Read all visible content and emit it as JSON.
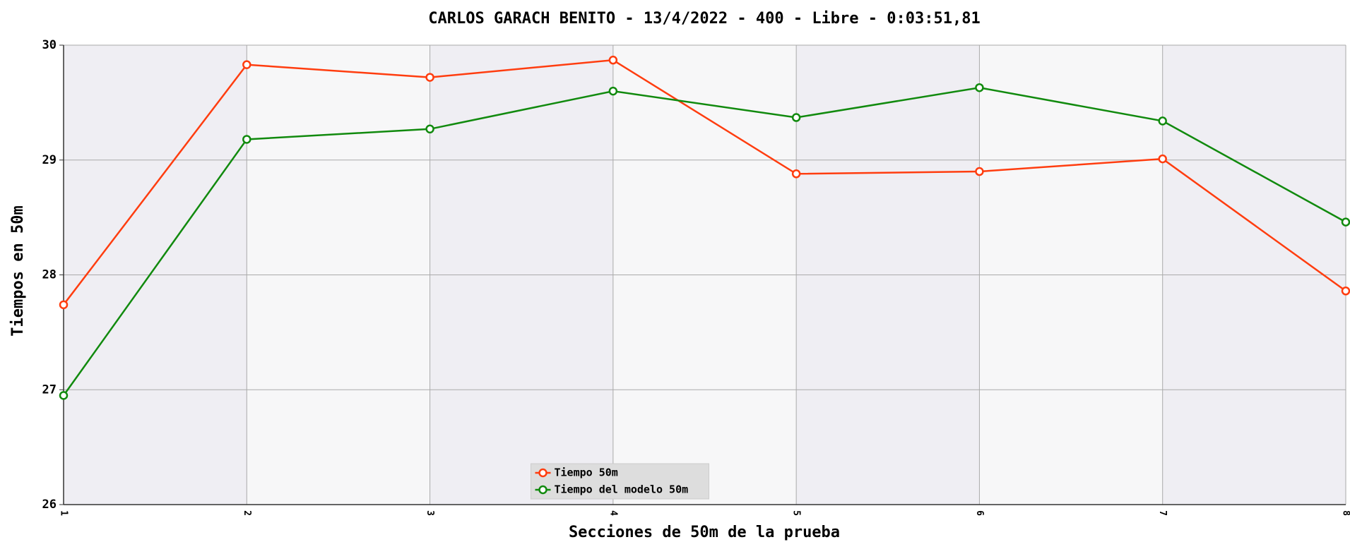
{
  "chart_data": {
    "type": "line",
    "title": "CARLOS GARACH BENITO - 13/4/2022 - 400 - Libre - 0:03:51,81",
    "x_label": "Secciones de 50m de la prueba",
    "y_label": "Tiempos en 50m",
    "x": [
      1,
      2,
      3,
      4,
      5,
      6,
      7,
      8
    ],
    "series": [
      {
        "name": "Tiempo 50m",
        "color": "#ff3d0f",
        "values": [
          27.74,
          29.83,
          29.72,
          29.87,
          28.88,
          28.9,
          29.01,
          27.86
        ]
      },
      {
        "name": "Tiempo del modelo 50m",
        "color": "#118a0e",
        "values": [
          26.95,
          29.18,
          29.27,
          29.6,
          29.37,
          29.63,
          29.34,
          28.46
        ]
      }
    ],
    "xlim": [
      1,
      8
    ],
    "xticks": [
      1,
      2,
      3,
      4,
      5,
      6,
      7,
      8
    ],
    "ylim": [
      26,
      30
    ],
    "yticks": [
      26,
      27,
      28,
      29,
      30
    ],
    "grid": true,
    "legend": "lower center"
  }
}
